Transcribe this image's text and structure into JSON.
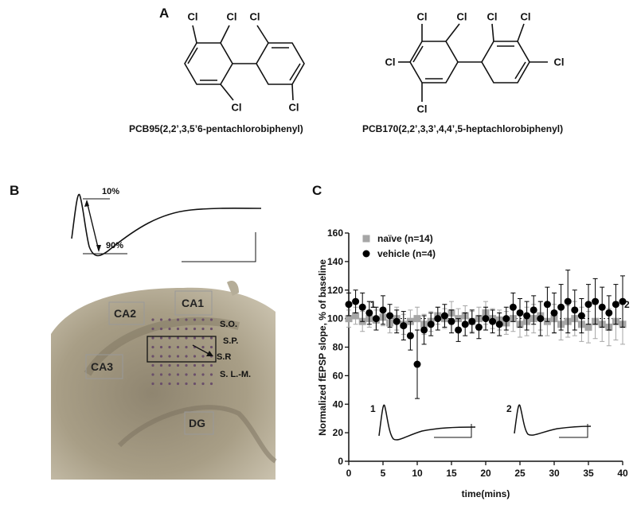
{
  "panels": {
    "A": {
      "letter": "A",
      "pcb95": {
        "name": "PCB95(2,2’,3,5’6-pentachlorobiphenyl)",
        "atoms": [
          "Cl",
          "Cl",
          "Cl",
          "Cl",
          "Cl"
        ]
      },
      "pcb170": {
        "name": "PCB170(2,2’,3,3’,4,4’,5-heptachlorobiphenyl)",
        "atoms": [
          "Cl",
          "Cl",
          "Cl",
          "Cl",
          "Cl",
          "Cl",
          "Cl"
        ]
      }
    },
    "B": {
      "letter": "B",
      "trace_labels": [
        "10%",
        "90%"
      ],
      "regions": [
        "CA2",
        "CA1",
        "CA3",
        "DG"
      ],
      "layers": [
        "S.O.",
        "S.P.",
        "S.R",
        "S. L.-M."
      ]
    }
  },
  "chart_data": {
    "type": "scatter",
    "title": "C",
    "x_label": "time(mins)",
    "y_label": "Normalized fEPSP slope, % of baseline",
    "annotations": [
      "1",
      "2",
      "1",
      "2"
    ],
    "x": [
      0,
      1,
      2,
      3,
      4,
      5,
      6,
      7,
      8,
      9,
      10,
      11,
      12,
      13,
      14,
      15,
      16,
      17,
      18,
      19,
      20,
      21,
      22,
      23,
      24,
      25,
      26,
      27,
      28,
      29,
      30,
      31,
      32,
      33,
      34,
      35,
      36,
      37,
      38,
      39,
      40
    ],
    "series": [
      {
        "name": "naïve (n=14)",
        "color": "#a6a6a6",
        "marker": "square",
        "values": [
          100,
          102,
          98,
          100,
          99,
          101,
          97,
          100,
          96,
          98,
          100,
          96,
          98,
          102,
          100,
          104,
          100,
          102,
          98,
          100,
          104,
          100,
          99,
          97,
          100,
          96,
          98,
          100,
          102,
          98,
          100,
          96,
          98,
          100,
          96,
          94,
          98,
          96,
          94,
          98,
          96
        ],
        "errors": [
          6,
          6,
          7,
          6,
          7,
          6,
          7,
          8,
          7,
          8,
          8,
          7,
          7,
          6,
          7,
          8,
          7,
          7,
          7,
          8,
          8,
          7,
          7,
          8,
          9,
          9,
          10,
          10,
          10,
          10,
          10,
          11,
          11,
          12,
          12,
          11,
          12,
          12,
          13,
          13,
          14
        ]
      },
      {
        "name": "vehicle (n=4)",
        "color": "#000000",
        "marker": "circle",
        "values": [
          110,
          112,
          108,
          104,
          100,
          106,
          102,
          98,
          95,
          88,
          68,
          92,
          96,
          100,
          102,
          98,
          92,
          96,
          98,
          94,
          100,
          98,
          96,
          100,
          108,
          104,
          102,
          106,
          100,
          110,
          104,
          108,
          112,
          106,
          102,
          110,
          112,
          108,
          104,
          110,
          112
        ],
        "errors": [
          8,
          8,
          10,
          8,
          8,
          10,
          8,
          8,
          10,
          10,
          24,
          10,
          8,
          8,
          8,
          8,
          8,
          8,
          8,
          8,
          8,
          8,
          8,
          8,
          10,
          10,
          10,
          10,
          12,
          12,
          14,
          16,
          22,
          14,
          12,
          14,
          16,
          14,
          12,
          14,
          18
        ]
      }
    ],
    "xlim": [
      0,
      40
    ],
    "xticks": [
      0,
      5,
      10,
      15,
      20,
      25,
      30,
      35,
      40
    ],
    "ylim": [
      0,
      160
    ],
    "yticks": [
      0,
      20,
      40,
      60,
      80,
      100,
      120,
      140,
      160
    ],
    "baseline": 100
  }
}
